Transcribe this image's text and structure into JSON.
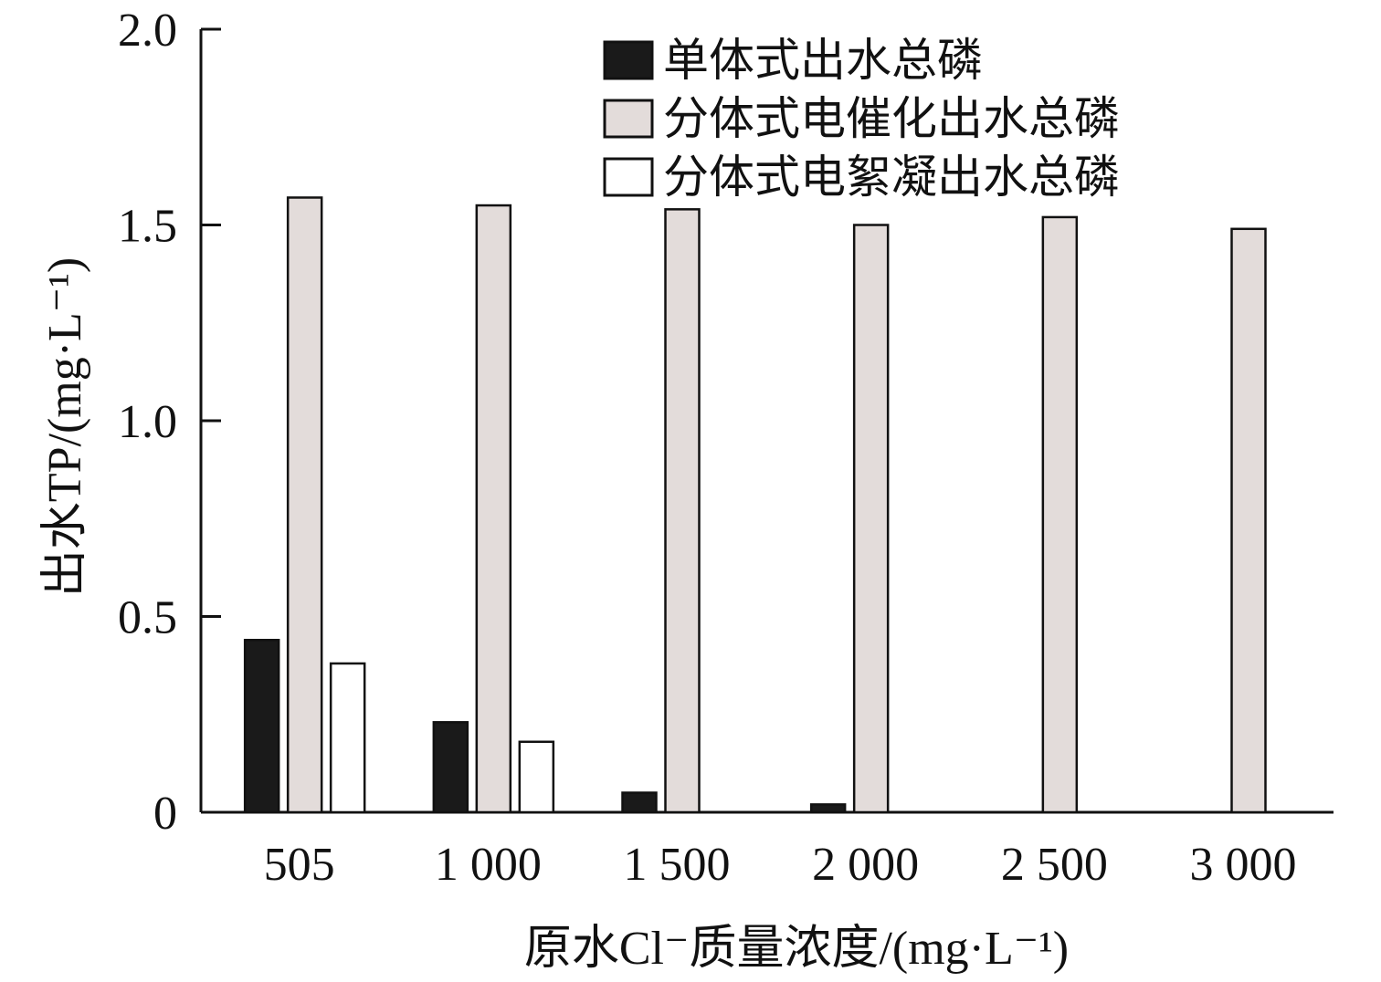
{
  "chart_data": {
    "type": "bar",
    "categories": [
      "505",
      "1 000",
      "1 500",
      "2 000",
      "2 500",
      "3 000"
    ],
    "series": [
      {
        "name": "单体式出水总磷",
        "color": "#1a1a1a",
        "values": [
          0.44,
          0.23,
          0.05,
          0.02,
          0,
          0
        ]
      },
      {
        "name": "分体式电催化出水总磷",
        "color": "#e3dcda",
        "values": [
          1.57,
          1.55,
          1.54,
          1.5,
          1.52,
          1.49
        ]
      },
      {
        "name": "分体式电絮凝出水总磷",
        "color": "#ffffff",
        "values": [
          0.38,
          0.18,
          0,
          0,
          0,
          0
        ]
      }
    ],
    "xlabel": "原水Cl⁻质量浓度/(mg·L⁻¹)",
    "ylabel": "出水TP/(mg·L⁻¹)",
    "ylim": [
      0,
      2.0
    ],
    "yticks": [
      0,
      0.5,
      1.0,
      1.5,
      2.0
    ],
    "ytick_labels": [
      "0",
      "0.5",
      "1.0",
      "1.5",
      "2.0"
    ],
    "grid": false,
    "legend_position": "top-right"
  }
}
